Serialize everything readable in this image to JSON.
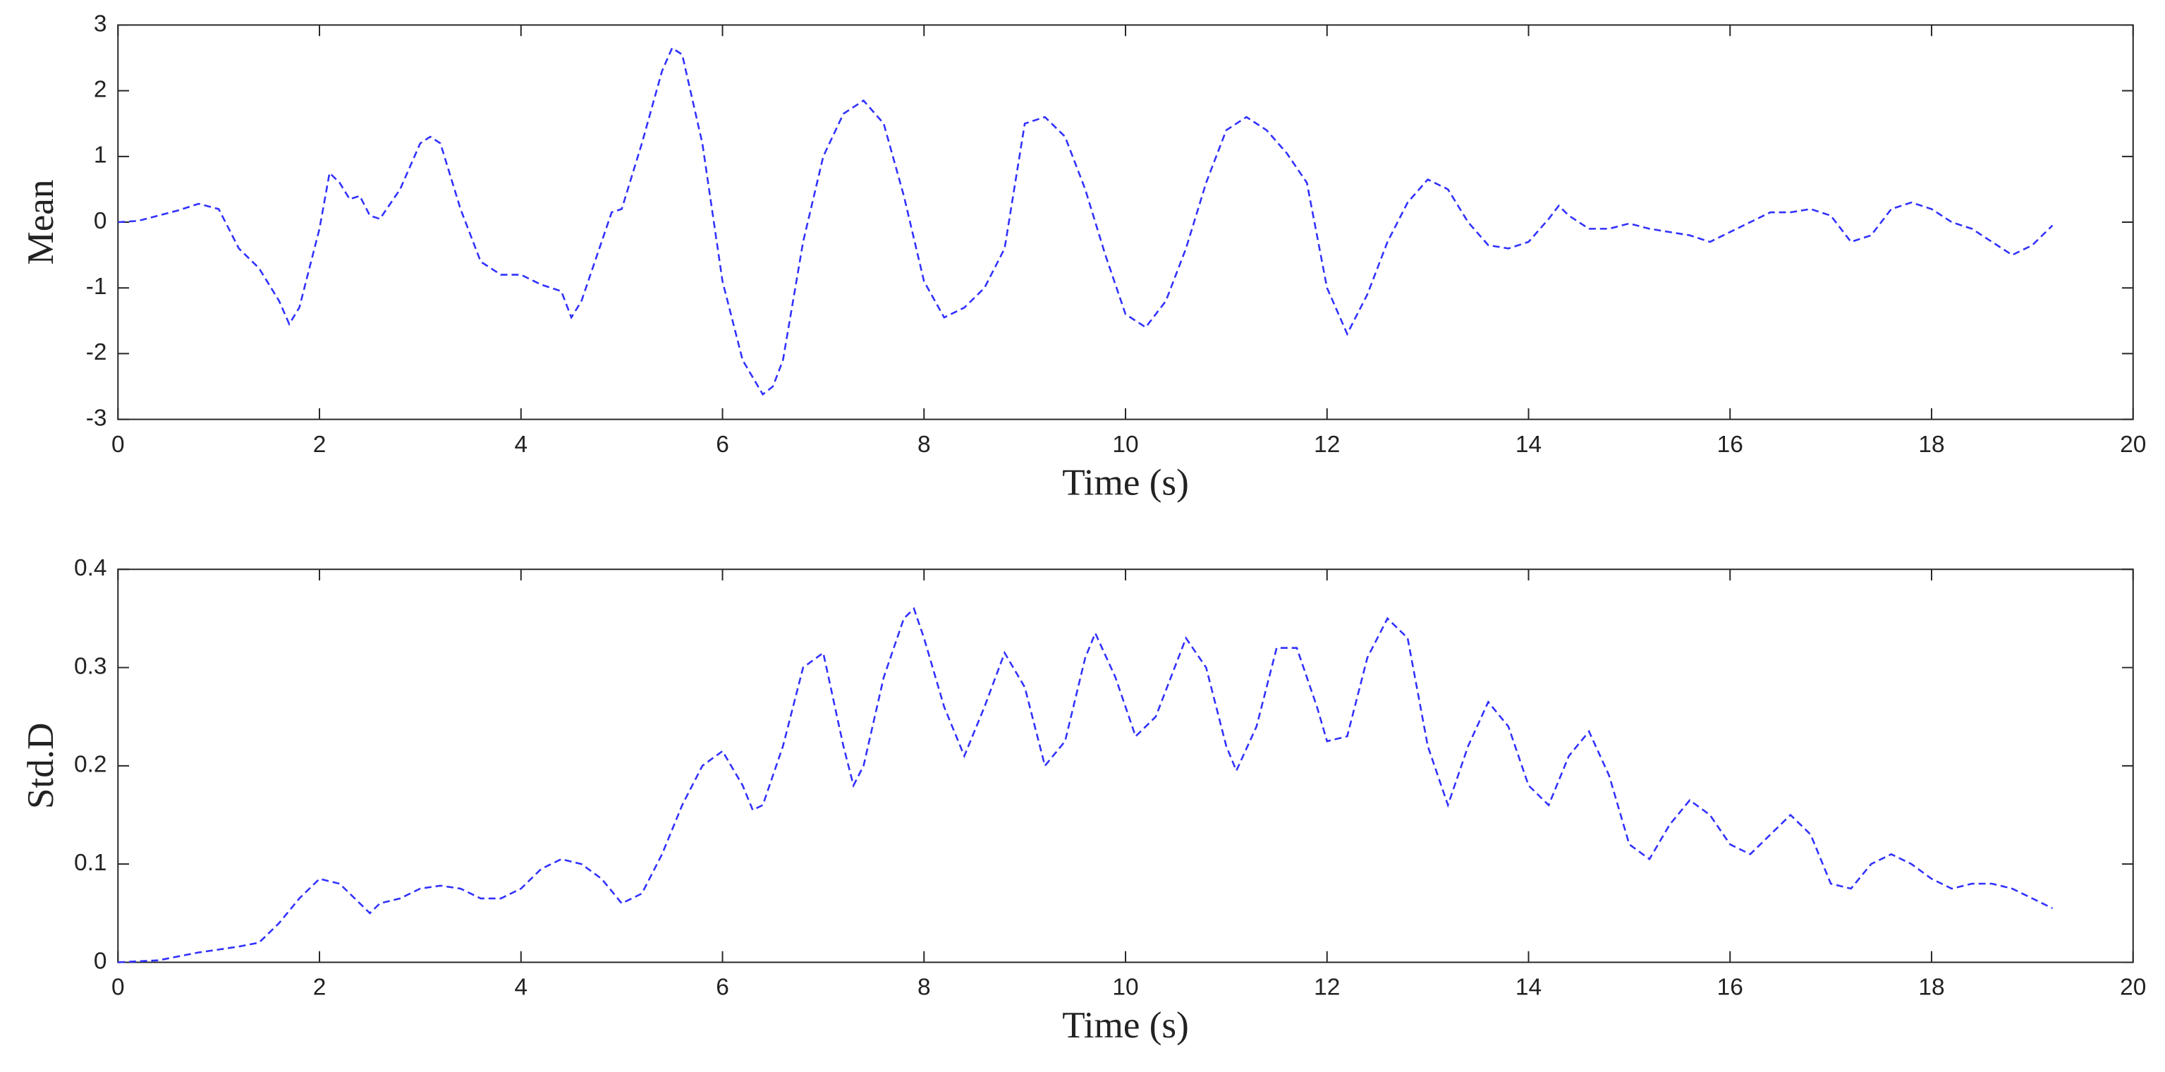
{
  "chart_data": [
    {
      "type": "line",
      "xlabel": "Time (s)",
      "ylabel": "Mean",
      "xlim": [
        0,
        20
      ],
      "xticks": [
        0,
        2,
        4,
        6,
        8,
        10,
        12,
        14,
        16,
        18,
        20
      ],
      "ylim": [
        -3,
        3
      ],
      "yticks": [
        -3,
        -2,
        -1,
        0,
        1,
        2,
        3
      ],
      "grid": false,
      "series": [
        {
          "color": "#3030ff",
          "x": [
            0,
            0.2,
            0.4,
            0.6,
            0.8,
            1.0,
            1.2,
            1.4,
            1.6,
            1.7,
            1.8,
            2.0,
            2.1,
            2.2,
            2.3,
            2.4,
            2.5,
            2.6,
            2.8,
            3.0,
            3.1,
            3.2,
            3.4,
            3.6,
            3.8,
            4.0,
            4.2,
            4.4,
            4.5,
            4.6,
            4.8,
            4.9,
            5.0,
            5.2,
            5.4,
            5.5,
            5.6,
            5.8,
            6.0,
            6.2,
            6.4,
            6.5,
            6.6,
            6.8,
            7.0,
            7.2,
            7.4,
            7.6,
            7.8,
            8.0,
            8.2,
            8.4,
            8.6,
            8.8,
            9.0,
            9.2,
            9.4,
            9.6,
            9.8,
            10.0,
            10.2,
            10.4,
            10.6,
            10.8,
            11.0,
            11.2,
            11.4,
            11.6,
            11.8,
            12.0,
            12.2,
            12.4,
            12.6,
            12.8,
            13.0,
            13.2,
            13.4,
            13.6,
            13.8,
            14.0,
            14.2,
            14.3,
            14.4,
            14.6,
            14.8,
            15.0,
            15.2,
            15.4,
            15.6,
            15.8,
            16.0,
            16.2,
            16.4,
            16.6,
            16.8,
            17.0,
            17.2,
            17.4,
            17.6,
            17.8,
            18.0,
            18.2,
            18.4,
            18.6,
            18.8,
            19.0,
            19.2
          ],
          "values": [
            0,
            0.02,
            0.1,
            0.18,
            0.28,
            0.2,
            -0.4,
            -0.7,
            -1.2,
            -1.55,
            -1.3,
            -0.1,
            0.75,
            0.6,
            0.35,
            0.4,
            0.1,
            0.05,
            0.5,
            1.2,
            1.3,
            1.2,
            0.2,
            -0.6,
            -0.8,
            -0.8,
            -0.95,
            -1.05,
            -1.45,
            -1.2,
            -0.3,
            0.15,
            0.2,
            1.2,
            2.3,
            2.65,
            2.55,
            1.2,
            -0.9,
            -2.1,
            -2.62,
            -2.5,
            -2.1,
            -0.3,
            1.0,
            1.65,
            1.85,
            1.5,
            0.4,
            -0.9,
            -1.45,
            -1.3,
            -1.0,
            -0.4,
            1.5,
            1.6,
            1.3,
            0.5,
            -0.5,
            -1.4,
            -1.6,
            -1.2,
            -0.4,
            0.6,
            1.4,
            1.6,
            1.4,
            1.05,
            0.6,
            -1.0,
            -1.7,
            -1.1,
            -0.3,
            0.3,
            0.65,
            0.5,
            0.0,
            -0.35,
            -0.4,
            -0.3,
            0.05,
            0.25,
            0.1,
            -0.1,
            -0.1,
            -0.02,
            -0.1,
            -0.15,
            -0.2,
            -0.3,
            -0.15,
            0.0,
            0.15,
            0.15,
            0.2,
            0.1,
            -0.3,
            -0.2,
            0.2,
            0.3,
            0.2,
            0.0,
            -0.1,
            -0.3,
            -0.5,
            -0.35,
            -0.05
          ]
        }
      ]
    },
    {
      "type": "line",
      "xlabel": "Time (s)",
      "ylabel": "Std.D",
      "xlim": [
        0,
        20
      ],
      "xticks": [
        0,
        2,
        4,
        6,
        8,
        10,
        12,
        14,
        16,
        18,
        20
      ],
      "ylim": [
        0,
        0.4
      ],
      "yticks": [
        0,
        0.1,
        0.2,
        0.3,
        0.4
      ],
      "grid": false,
      "series": [
        {
          "color": "#3030ff",
          "x": [
            0,
            0.4,
            0.8,
            1.0,
            1.2,
            1.4,
            1.6,
            1.8,
            2.0,
            2.2,
            2.4,
            2.5,
            2.6,
            2.8,
            3.0,
            3.2,
            3.4,
            3.6,
            3.8,
            4.0,
            4.2,
            4.4,
            4.6,
            4.8,
            5.0,
            5.2,
            5.4,
            5.6,
            5.8,
            6.0,
            6.2,
            6.3,
            6.4,
            6.6,
            6.8,
            7.0,
            7.2,
            7.3,
            7.4,
            7.6,
            7.8,
            7.9,
            8.0,
            8.2,
            8.4,
            8.6,
            8.8,
            9.0,
            9.2,
            9.4,
            9.6,
            9.7,
            9.9,
            10.1,
            10.3,
            10.6,
            10.8,
            11.0,
            11.1,
            11.3,
            11.5,
            11.7,
            11.9,
            12.0,
            12.2,
            12.4,
            12.6,
            12.8,
            13.0,
            13.2,
            13.4,
            13.6,
            13.8,
            14.0,
            14.2,
            14.4,
            14.6,
            14.8,
            15.0,
            15.2,
            15.4,
            15.6,
            15.8,
            16.0,
            16.2,
            16.4,
            16.6,
            16.8,
            17.0,
            17.2,
            17.4,
            17.6,
            17.8,
            18.0,
            18.2,
            18.4,
            18.6,
            18.8,
            19.0,
            19.2
          ],
          "values": [
            0,
            0.002,
            0.01,
            0.013,
            0.016,
            0.02,
            0.04,
            0.065,
            0.085,
            0.08,
            0.06,
            0.05,
            0.06,
            0.065,
            0.075,
            0.078,
            0.075,
            0.065,
            0.065,
            0.075,
            0.095,
            0.105,
            0.1,
            0.085,
            0.06,
            0.07,
            0.11,
            0.16,
            0.2,
            0.215,
            0.18,
            0.155,
            0.16,
            0.22,
            0.3,
            0.315,
            0.22,
            0.18,
            0.2,
            0.29,
            0.35,
            0.36,
            0.33,
            0.26,
            0.21,
            0.26,
            0.315,
            0.28,
            0.2,
            0.225,
            0.31,
            0.335,
            0.29,
            0.23,
            0.25,
            0.33,
            0.3,
            0.22,
            0.195,
            0.24,
            0.32,
            0.32,
            0.26,
            0.225,
            0.23,
            0.31,
            0.35,
            0.33,
            0.22,
            0.16,
            0.22,
            0.265,
            0.24,
            0.18,
            0.16,
            0.21,
            0.235,
            0.19,
            0.12,
            0.105,
            0.14,
            0.165,
            0.15,
            0.12,
            0.11,
            0.13,
            0.15,
            0.13,
            0.08,
            0.075,
            0.1,
            0.11,
            0.1,
            0.085,
            0.075,
            0.08,
            0.08,
            0.075,
            0.065,
            0.055
          ]
        }
      ]
    }
  ]
}
